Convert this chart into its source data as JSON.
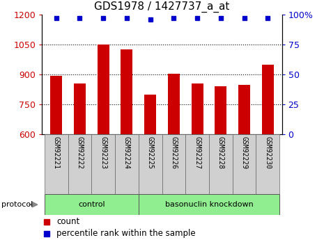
{
  "title": "GDS1978 / 1427737_a_at",
  "samples": [
    "GSM92221",
    "GSM92222",
    "GSM92223",
    "GSM92224",
    "GSM92225",
    "GSM92226",
    "GSM92227",
    "GSM92228",
    "GSM92229",
    "GSM92230"
  ],
  "counts": [
    893,
    853,
    1050,
    1025,
    800,
    905,
    855,
    840,
    848,
    950
  ],
  "percentile_ranks": [
    97,
    97,
    97,
    97,
    96,
    97,
    97,
    97,
    97,
    97
  ],
  "groups": [
    {
      "label": "control",
      "start": 0,
      "end": 4
    },
    {
      "label": "basonuclin knockdown",
      "start": 4,
      "end": 10
    }
  ],
  "ylim_left": [
    600,
    1200
  ],
  "ylim_right": [
    0,
    100
  ],
  "yticks_left": [
    600,
    750,
    900,
    1050,
    1200
  ],
  "yticks_right": [
    0,
    25,
    50,
    75,
    100
  ],
  "bar_color": "#cc0000",
  "dot_color": "#0000cc",
  "bar_width": 0.5,
  "bg_color": "#ffffff",
  "plot_bg": "#ffffff",
  "grid_color": "#000000",
  "group_bg_color": "#90ee90",
  "tick_label_bg": "#d0d0d0",
  "protocol_label": "protocol",
  "legend_count_label": "count",
  "legend_pct_label": "percentile rank within the sample",
  "title_fontsize": 11,
  "tick_fontsize": 9,
  "label_fontsize": 8
}
